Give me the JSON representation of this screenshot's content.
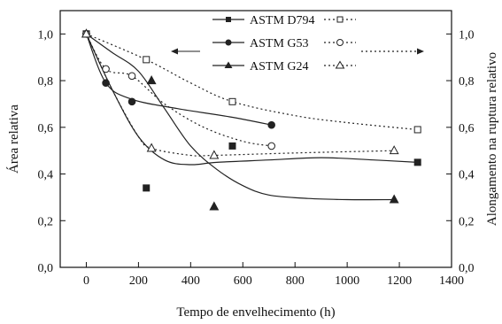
{
  "chart_data": {
    "type": "scatter",
    "xlabel": "Tempo de envelhecimento (h)",
    "ylabel_left": "Área relativa",
    "ylabel_right": "Alongamento na ruptura relativo",
    "xlim": [
      -100,
      1400
    ],
    "ylim": [
      0.0,
      1.1
    ],
    "xticks": [
      0,
      200,
      400,
      600,
      800,
      1000,
      1200,
      1400
    ],
    "xtick_labels": [
      "0",
      "200",
      "400",
      "600",
      "800",
      "1000",
      "1200",
      "1400"
    ],
    "yticks": [
      0.0,
      0.2,
      0.4,
      0.6,
      0.8,
      1.0
    ],
    "ytick_labels": [
      "0,0",
      "0,2",
      "0,4",
      "0,6",
      "0,8",
      "1,0"
    ],
    "legend_labels": [
      "ASTM D794",
      "ASTM G53",
      "ASTM G24"
    ],
    "legend_position": "top-center",
    "grid": false,
    "series": [
      {
        "name": "ASTM D794",
        "axis": "left",
        "marker": "square-filled",
        "line": "solid",
        "points": [
          [
            0,
            1.0
          ],
          [
            230,
            0.34
          ],
          [
            560,
            0.52
          ],
          [
            1270,
            0.45
          ]
        ],
        "curve": [
          [
            0,
            1.0
          ],
          [
            100,
            0.76
          ],
          [
            200,
            0.56
          ],
          [
            300,
            0.46
          ],
          [
            400,
            0.44
          ],
          [
            500,
            0.45
          ],
          [
            700,
            0.46
          ],
          [
            900,
            0.47
          ],
          [
            1100,
            0.46
          ],
          [
            1270,
            0.45
          ]
        ]
      },
      {
        "name": "ASTM G53",
        "axis": "left",
        "marker": "circle-filled",
        "line": "solid",
        "points": [
          [
            0,
            1.0
          ],
          [
            75,
            0.79
          ],
          [
            175,
            0.71
          ],
          [
            710,
            0.61
          ]
        ],
        "curve": [
          [
            0,
            1.0
          ],
          [
            75,
            0.79
          ],
          [
            175,
            0.72
          ],
          [
            350,
            0.68
          ],
          [
            550,
            0.645
          ],
          [
            710,
            0.61
          ]
        ]
      },
      {
        "name": "ASTM G24",
        "axis": "left",
        "marker": "triangle-filled",
        "line": "solid",
        "points": [
          [
            0,
            1.0
          ],
          [
            250,
            0.8
          ],
          [
            490,
            0.26
          ],
          [
            1180,
            0.29
          ]
        ],
        "curve": [
          [
            0,
            1.0
          ],
          [
            100,
            0.92
          ],
          [
            200,
            0.84
          ],
          [
            300,
            0.68
          ],
          [
            400,
            0.52
          ],
          [
            500,
            0.42
          ],
          [
            600,
            0.35
          ],
          [
            700,
            0.31
          ],
          [
            850,
            0.295
          ],
          [
            1000,
            0.29
          ],
          [
            1180,
            0.29
          ]
        ]
      },
      {
        "name": "ASTM D794",
        "axis": "right",
        "marker": "square-open",
        "line": "dotted",
        "points": [
          [
            0,
            1.0
          ],
          [
            230,
            0.89
          ],
          [
            560,
            0.71
          ],
          [
            1270,
            0.59
          ]
        ],
        "curve": [
          [
            0,
            1.0
          ],
          [
            230,
            0.89
          ],
          [
            400,
            0.79
          ],
          [
            560,
            0.71
          ],
          [
            800,
            0.65
          ],
          [
            1000,
            0.62
          ],
          [
            1270,
            0.59
          ]
        ]
      },
      {
        "name": "ASTM G53",
        "axis": "right",
        "marker": "circle-open",
        "line": "dotted",
        "points": [
          [
            0,
            1.0
          ],
          [
            75,
            0.85
          ],
          [
            175,
            0.82
          ],
          [
            710,
            0.52
          ]
        ],
        "curve": [
          [
            0,
            1.0
          ],
          [
            75,
            0.85
          ],
          [
            175,
            0.82
          ],
          [
            300,
            0.7
          ],
          [
            450,
            0.6
          ],
          [
            600,
            0.54
          ],
          [
            710,
            0.52
          ]
        ]
      },
      {
        "name": "ASTM G24",
        "axis": "right",
        "marker": "triangle-open",
        "line": "dotted",
        "points": [
          [
            0,
            1.0
          ],
          [
            250,
            0.51
          ],
          [
            490,
            0.48
          ],
          [
            1180,
            0.5
          ]
        ],
        "curve": [
          [
            0,
            1.0
          ],
          [
            100,
            0.76
          ],
          [
            200,
            0.56
          ],
          [
            250,
            0.51
          ],
          [
            400,
            0.48
          ],
          [
            490,
            0.48
          ],
          [
            800,
            0.49
          ],
          [
            1180,
            0.5
          ]
        ]
      }
    ]
  }
}
